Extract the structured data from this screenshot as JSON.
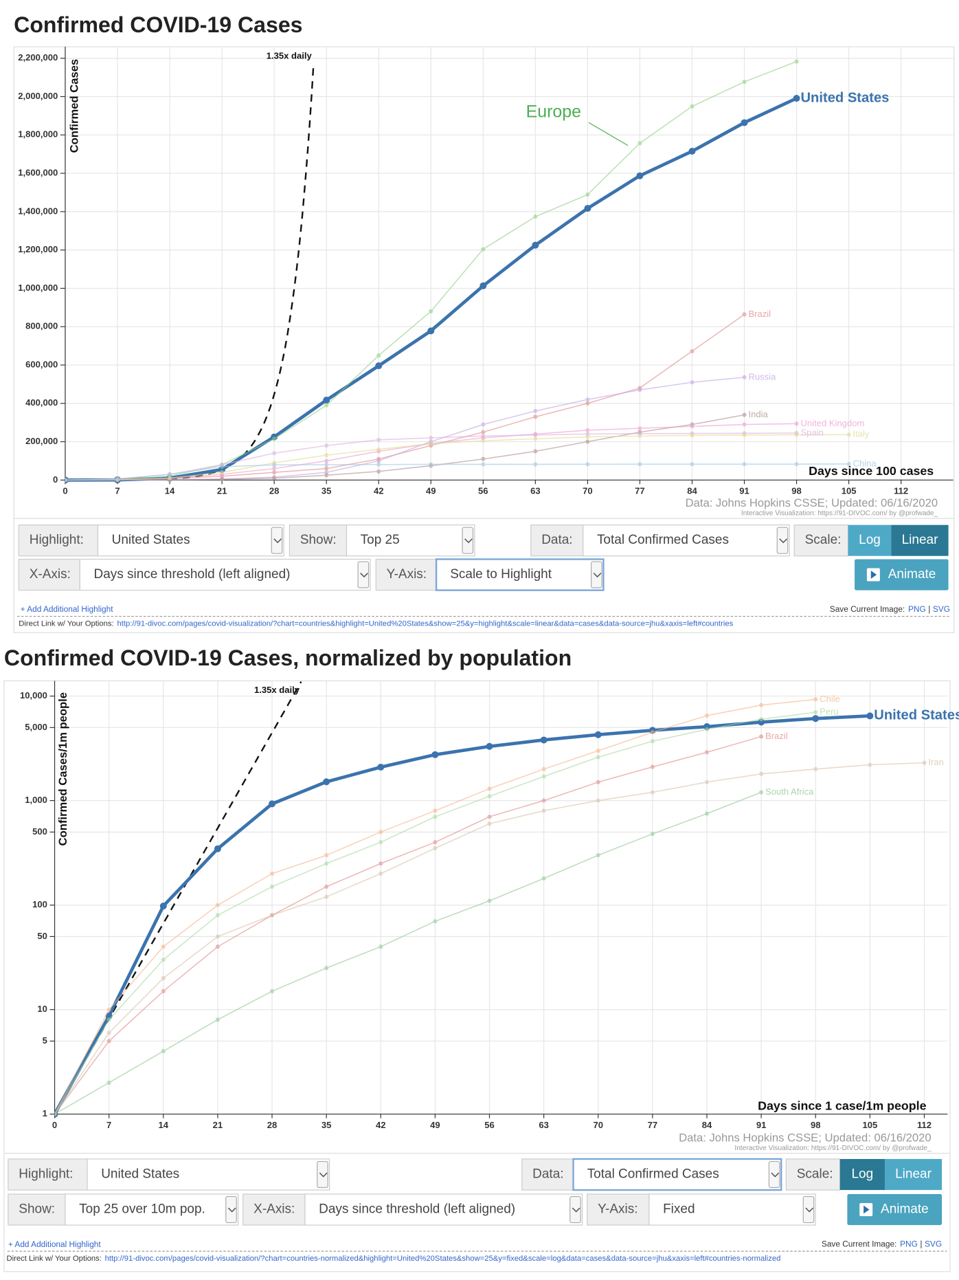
{
  "chart_data": [
    {
      "type": "line",
      "title": "Confirmed COVID-19 Cases",
      "ylabel": "Confirmed Cases",
      "xlabel": "Days since 100 cases",
      "source": "Data: Johns Hopkins CSSE; Updated: 06/16/2020",
      "credit": "Interactive Visualization: https://91-DIVOC.com/ by @profwade_",
      "log_scale": false,
      "grid": true,
      "xlim": [
        0,
        119
      ],
      "ylim": [
        0,
        2260000
      ],
      "xticks": [
        0,
        7,
        14,
        21,
        28,
        35,
        42,
        49,
        56,
        63,
        70,
        77,
        84,
        91,
        98,
        105,
        112
      ],
      "yticks": [
        0,
        {
          "value": 200000,
          "label": "200,000"
        },
        {
          "value": 400000,
          "label": "400,000"
        },
        {
          "value": 600000,
          "label": "600,000"
        },
        {
          "value": 800000,
          "label": "800,000"
        },
        {
          "value": 1000000,
          "label": "1,000,000"
        },
        {
          "value": 1200000,
          "label": "1,200,000"
        },
        {
          "value": 1400000,
          "label": "1,400,000"
        },
        {
          "value": 1600000,
          "label": "1,600,000"
        },
        {
          "value": 1800000,
          "label": "1,800,000"
        },
        {
          "value": 2000000,
          "label": "2,000,000"
        },
        {
          "value": 2200000,
          "label": "2,200,000"
        }
      ],
      "reference": {
        "label": "1.35x daily",
        "base": 100,
        "rate": 1.35
      },
      "x": [
        0,
        7,
        14,
        21,
        28,
        35,
        42,
        49,
        56,
        63,
        70,
        77,
        84,
        91,
        98,
        105
      ],
      "series": [
        {
          "name": "United States",
          "color": "#3b73ad",
          "values": [
            100,
            1000,
            10000,
            55000,
            225000,
            417000,
            596000,
            778000,
            1013000,
            1225000,
            1417000,
            1587000,
            1715000,
            1864000,
            1991000,
            null
          ]
        },
        {
          "name": "Europe",
          "color": "#8fcf80",
          "values": [
            100,
            2000,
            20000,
            80000,
            215000,
            390000,
            650000,
            880000,
            1204000,
            1374000,
            1489000,
            1757000,
            1949000,
            2077000,
            2183000,
            null
          ]
        },
        {
          "name": "Brazil",
          "color": "#e08a8a",
          "values": [
            100,
            1500,
            8000,
            20000,
            40000,
            60000,
            110000,
            180000,
            250000,
            330000,
            400000,
            480000,
            672000,
            864000,
            null,
            null
          ]
        },
        {
          "name": "Russia",
          "color": "#c0a4e0",
          "values": [
            100,
            500,
            1500,
            5000,
            15000,
            40000,
            100000,
            200000,
            290000,
            360000,
            420000,
            470000,
            510000,
            536000,
            null,
            null
          ]
        },
        {
          "name": "India",
          "color": "#b08e8e",
          "values": [
            100,
            300,
            1200,
            4000,
            10000,
            25000,
            45000,
            75000,
            110000,
            150000,
            200000,
            250000,
            290000,
            340000,
            null,
            null
          ]
        },
        {
          "name": "United Kingdom",
          "color": "#f09ad0",
          "values": [
            100,
            1500,
            10000,
            30000,
            60000,
            100000,
            150000,
            190000,
            220000,
            240000,
            260000,
            270000,
            280000,
            290000,
            294000,
            null
          ]
        },
        {
          "name": "Spain",
          "color": "#dcaedc",
          "values": [
            100,
            5000,
            30000,
            80000,
            140000,
            180000,
            210000,
            220000,
            230000,
            235000,
            240000,
            242000,
            243000,
            244000,
            245000,
            null
          ]
        },
        {
          "name": "Italy",
          "color": "#dedc8c",
          "values": [
            100,
            2000,
            10000,
            40000,
            90000,
            130000,
            160000,
            190000,
            205000,
            215000,
            225000,
            230000,
            233000,
            235000,
            236000,
            237000
          ]
        },
        {
          "name": "China",
          "color": "#9cc6e0",
          "values": [
            100,
            5000,
            30000,
            70000,
            79000,
            80000,
            81000,
            82000,
            82000,
            82000,
            82500,
            83000,
            83000,
            83100,
            83200,
            84000
          ]
        }
      ]
    },
    {
      "type": "line",
      "title": "Confirmed COVID-19 Cases, normalized by population",
      "ylabel": "Confirmed Cases/1m people",
      "xlabel": "Days since 1 case/1m people",
      "source": "Data: Johns Hopkins CSSE; Updated: 06/16/2020",
      "credit": "Interactive Visualization: https://91-DIVOC.com/ by @profwade_",
      "log_scale": true,
      "grid": true,
      "xlim": [
        0,
        115
      ],
      "ylim": [
        1,
        14000
      ],
      "xticks": [
        0,
        7,
        14,
        21,
        28,
        35,
        42,
        49,
        56,
        63,
        70,
        77,
        84,
        91,
        98,
        105,
        112
      ],
      "yticks": [
        1,
        5,
        10,
        50,
        100,
        500,
        {
          "value": 1000,
          "label": "1,000"
        },
        {
          "value": 5000,
          "label": "5,000"
        },
        {
          "value": 10000,
          "label": "10,000"
        }
      ],
      "reference": {
        "label": "1.35x daily",
        "base": 1,
        "rate": 1.35
      },
      "x": [
        0,
        7,
        14,
        21,
        28,
        35,
        42,
        49,
        56,
        63,
        70,
        77,
        84,
        91,
        98,
        105,
        112
      ],
      "series": [
        {
          "name": "United States",
          "color": "#3b73ad",
          "values": [
            1,
            8.7,
            98,
            346,
            930,
            1513,
            2090,
            2750,
            3300,
            3800,
            4270,
            4700,
            5100,
            5630,
            6100,
            6460,
            null
          ]
        },
        {
          "name": "Chile",
          "color": "#f5b48a",
          "values": [
            1,
            10,
            40,
            100,
            200,
            300,
            500,
            800,
            1300,
            2000,
            3000,
            4500,
            6500,
            8200,
            9300,
            null,
            null
          ]
        },
        {
          "name": "Peru",
          "color": "#a8d8a0",
          "values": [
            1,
            8,
            30,
            80,
            150,
            250,
            400,
            700,
            1100,
            1700,
            2600,
            3700,
            4800,
            6000,
            7000,
            null,
            null
          ]
        },
        {
          "name": "Brazil",
          "color": "#e08a8a",
          "values": [
            1,
            5,
            15,
            40,
            80,
            150,
            250,
            400,
            700,
            1000,
            1500,
            2100,
            2900,
            4100,
            null,
            null,
            null
          ]
        },
        {
          "name": "Iran",
          "color": "#d8c0a8",
          "values": [
            1,
            6,
            20,
            50,
            80,
            120,
            200,
            350,
            600,
            800,
            1000,
            1200,
            1500,
            1800,
            2000,
            2200,
            2300
          ]
        },
        {
          "name": "South Africa",
          "color": "#90c890",
          "values": [
            1,
            2,
            4,
            8,
            15,
            25,
            40,
            70,
            110,
            180,
            300,
            480,
            750,
            1200,
            null,
            null,
            null
          ]
        }
      ]
    }
  ],
  "panels": [
    {
      "highlight_label": "Highlight:",
      "highlight": "United States",
      "show_label": "Show:",
      "show": "Top 25",
      "data_label": "Data:",
      "data": "Total Confirmed Cases",
      "scale_label": "Scale:",
      "scale_options": [
        "Log",
        "Linear"
      ],
      "xaxis_label": "X-Axis:",
      "xaxis": "Days since threshold (left aligned)",
      "yaxis_label": "Y-Axis:",
      "yaxis": "Scale to Highlight",
      "animate": "Animate",
      "add_highlight": "+ Add Additional Highlight",
      "save_label": "Save Current Image:",
      "save_png": "PNG",
      "save_sep": "|",
      "save_svg": "SVG",
      "link_label": "Direct Link w/ Your Options:",
      "link": "http://91-divoc.com/pages/covid-visualization/?chart=countries&highlight=United%20States&show=25&y=highlight&scale=linear&data=cases&data-source=jhu&xaxis=left#countries"
    },
    {
      "highlight_label": "Highlight:",
      "highlight": "United States",
      "show_label": "Show:",
      "show": "Top 25 over 10m pop.",
      "data_label": "Data:",
      "data": "Total Confirmed Cases",
      "scale_label": "Scale:",
      "scale_options": [
        "Log",
        "Linear"
      ],
      "xaxis_label": "X-Axis:",
      "xaxis": "Days since threshold (left aligned)",
      "yaxis_label": "Y-Axis:",
      "yaxis": "Fixed",
      "animate": "Animate",
      "add_highlight": "+ Add Additional Highlight",
      "save_label": "Save Current Image:",
      "save_png": "PNG",
      "save_sep": "|",
      "save_svg": "SVG",
      "link_label": "Direct Link w/ Your Options:",
      "link": "http://91-divoc.com/pages/covid-visualization/?chart=countries-normalized&highlight=United%20States&show=25&y=fixed&scale=log&data=cases&data-source=jhu&xaxis=left#countries-normalized"
    }
  ]
}
